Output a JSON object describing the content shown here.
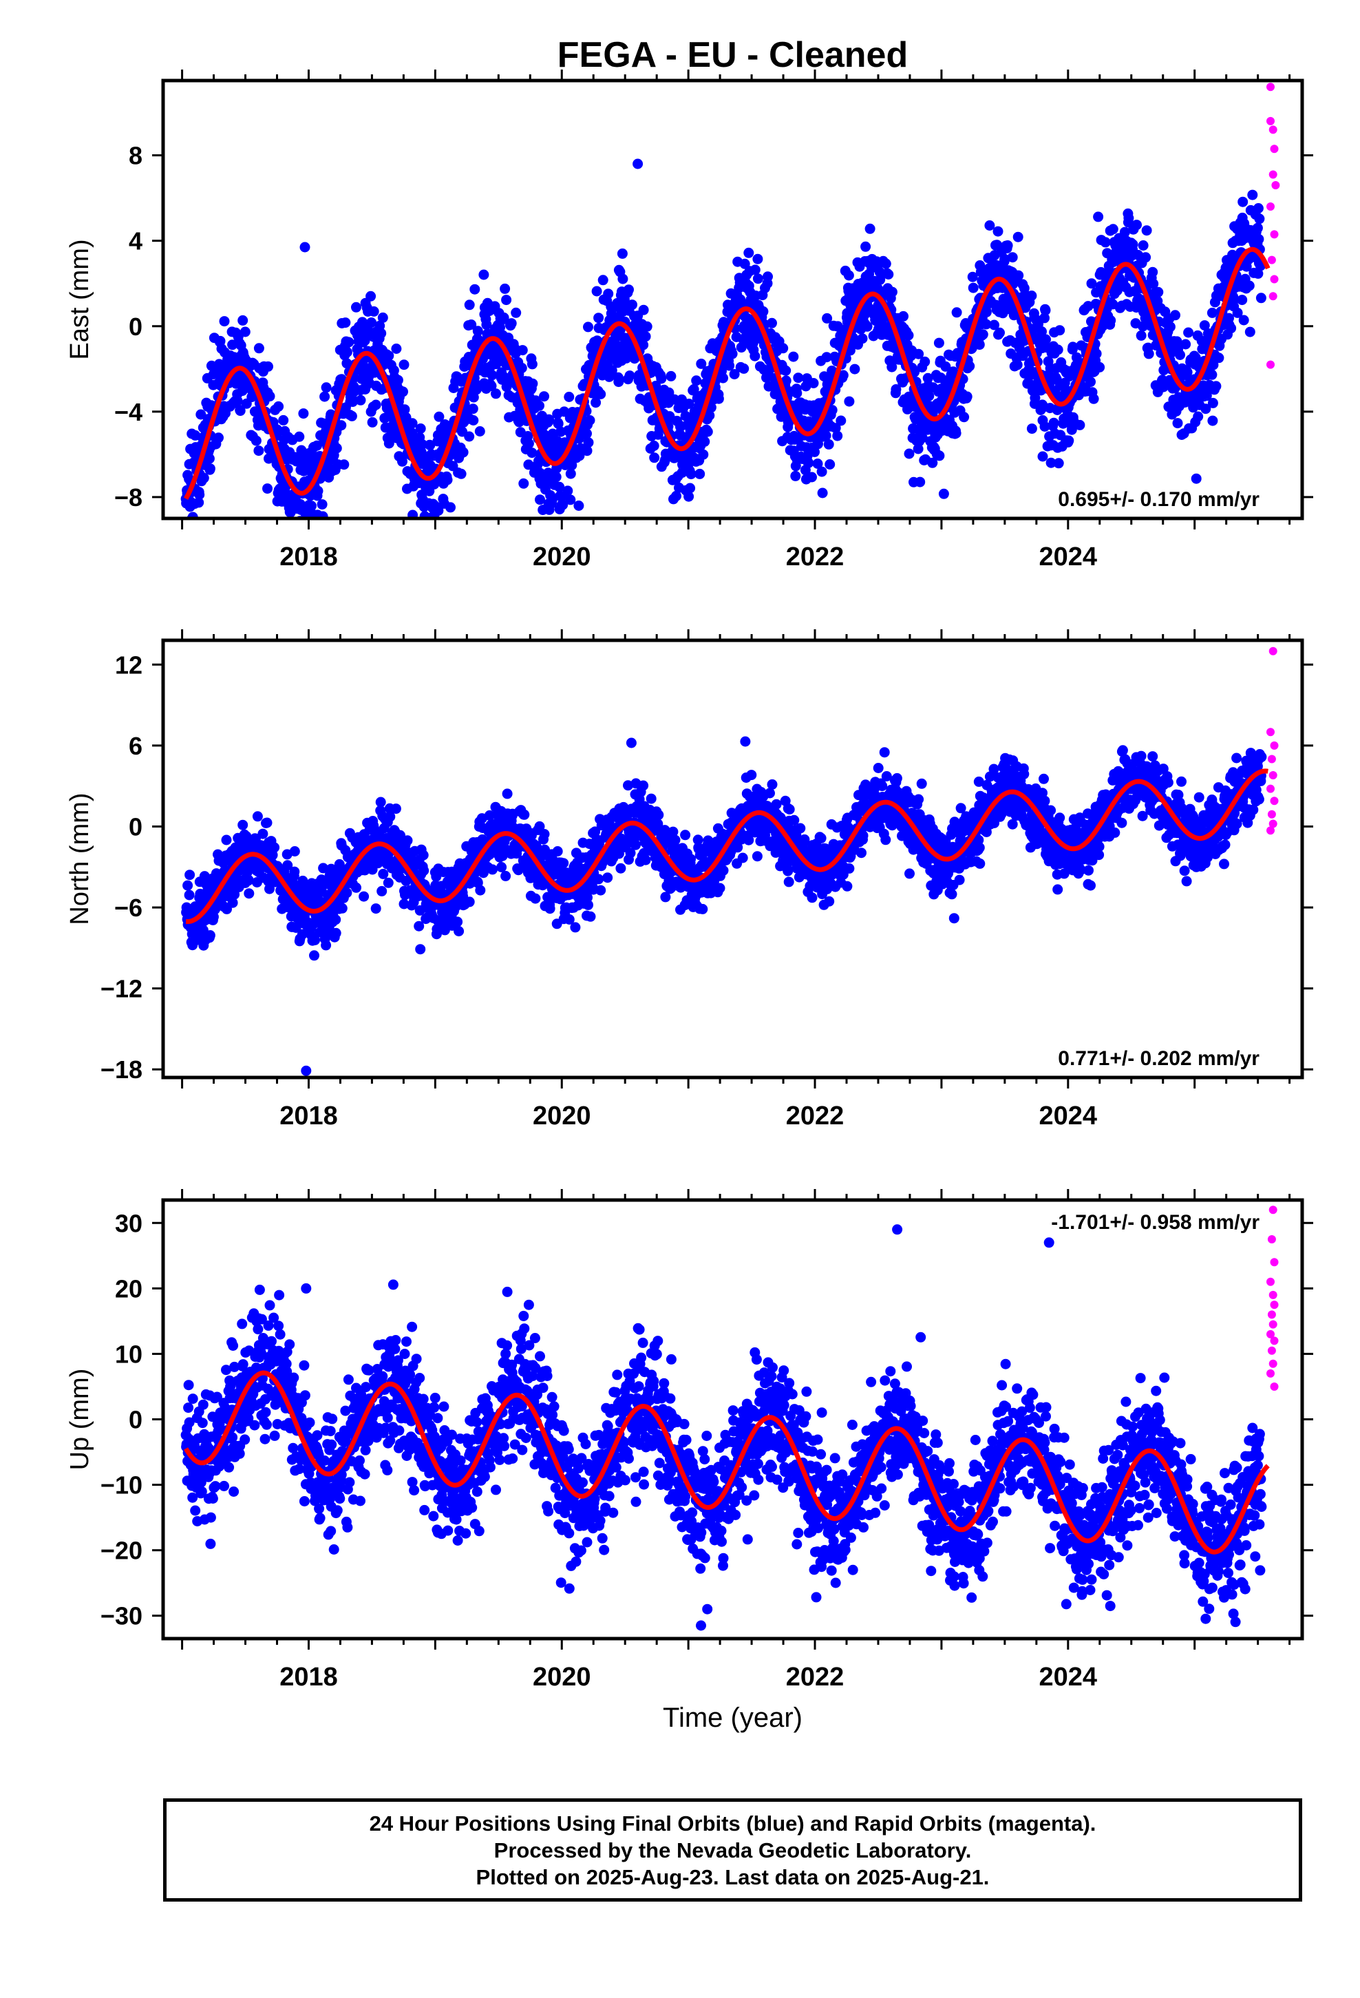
{
  "chart_data": [
    {
      "type": "scatter",
      "title": "FEGA  - EU - Cleaned",
      "ylabel": "East (mm)",
      "xlabel": "",
      "xlim": [
        2016.85,
        2025.85
      ],
      "ylim": [
        -9,
        11.5
      ],
      "yticks": [
        -8,
        -4,
        0,
        4,
        8
      ],
      "xticks": [
        2018,
        2020,
        2022,
        2024
      ],
      "rate_label": "0.695+/- 0.170 mm/yr",
      "rate_position": "bottom-right",
      "model": {
        "offset": -2.6,
        "rate": 0.695,
        "amp": 3.1,
        "phase": 2016.2,
        "anchor": 2021.0
      },
      "scatter": {
        "noise": 1.25,
        "extra": [
          [
            2017.97,
            3.7
          ],
          [
            2020.6,
            7.6
          ],
          [
            2019.85,
            -8.6
          ],
          [
            2023.8,
            -6.1
          ],
          [
            2022.78,
            -7.3
          ],
          [
            2021.95,
            -6.4
          ],
          [
            2017.05,
            -7.9
          ]
        ]
      },
      "series": [
        {
          "name": "Final Orbits (blue)",
          "color": "#0000ff",
          "x_range": [
            2017.03,
            2025.53
          ]
        },
        {
          "name": "Rapid Orbits (magenta)",
          "color": "#ff00ff",
          "values": [
            [
              2025.6,
              11.2
            ],
            [
              2025.6,
              9.6
            ],
            [
              2025.62,
              9.2
            ],
            [
              2025.63,
              8.3
            ],
            [
              2025.62,
              7.1
            ],
            [
              2025.64,
              6.6
            ],
            [
              2025.6,
              5.6
            ],
            [
              2025.63,
              4.3
            ],
            [
              2025.61,
              3.1
            ],
            [
              2025.63,
              2.2
            ],
            [
              2025.62,
              1.4
            ],
            [
              2025.6,
              -1.8
            ]
          ]
        },
        {
          "name": "Model fit",
          "color": "#ff0000"
        }
      ]
    },
    {
      "type": "scatter",
      "title": "",
      "ylabel": "North (mm)",
      "xlabel": "",
      "xlim": [
        2016.85,
        2025.85
      ],
      "ylim": [
        -18.6,
        13.8
      ],
      "yticks": [
        -18,
        -12,
        -6,
        0,
        6,
        12
      ],
      "xticks": [
        2018,
        2020,
        2022,
        2024
      ],
      "rate_label": "0.771+/- 0.202 mm/yr",
      "rate_position": "bottom-right",
      "model": {
        "offset": -1.7,
        "rate": 0.771,
        "amp": 2.3,
        "phase": 2016.3,
        "anchor": 2021.0
      },
      "scatter": {
        "noise": 1.2,
        "extra": [
          [
            2017.98,
            -18.1
          ],
          [
            2021.45,
            6.3
          ],
          [
            2020.55,
            6.2
          ],
          [
            2022.55,
            5.5
          ],
          [
            2023.1,
            -6.8
          ],
          [
            2017.9,
            -7.5
          ]
        ]
      },
      "series": [
        {
          "name": "Final Orbits (blue)",
          "color": "#0000ff",
          "x_range": [
            2017.03,
            2025.53
          ]
        },
        {
          "name": "Rapid Orbits (magenta)",
          "color": "#ff00ff",
          "values": [
            [
              2025.62,
              13.0
            ],
            [
              2025.6,
              7.0
            ],
            [
              2025.63,
              6.0
            ],
            [
              2025.61,
              5.0
            ],
            [
              2025.62,
              3.8
            ],
            [
              2025.6,
              2.8
            ],
            [
              2025.63,
              1.9
            ],
            [
              2025.61,
              0.9
            ],
            [
              2025.62,
              0.2
            ],
            [
              2025.6,
              -0.3
            ]
          ]
        },
        {
          "name": "Model fit",
          "color": "#ff0000"
        }
      ]
    },
    {
      "type": "scatter",
      "title": "",
      "ylabel": "Up (mm)",
      "xlabel": "Time (year)",
      "xlim": [
        2016.85,
        2025.85
      ],
      "ylim": [
        -33.5,
        33.5
      ],
      "yticks": [
        -30,
        -20,
        -10,
        0,
        10,
        20,
        30
      ],
      "xticks": [
        2018,
        2020,
        2022,
        2024
      ],
      "rate_label": "-1.701+/- 0.958 mm/yr",
      "rate_position": "top-right",
      "model": {
        "offset": 0.9,
        "rate": -1.701,
        "amp": 7.3,
        "phase": 2017.4,
        "anchor": 2017.0
      },
      "scatter": {
        "noise": 4.8,
        "extra": [
          [
            2022.65,
            29.0
          ],
          [
            2023.85,
            27.0
          ],
          [
            2021.1,
            -31.5
          ],
          [
            2021.15,
            -29.0
          ],
          [
            2017.98,
            20.0
          ],
          [
            2023.1,
            -24.0
          ],
          [
            2022.3,
            -23.0
          ],
          [
            2019.1,
            -17.0
          ]
        ]
      },
      "series": [
        {
          "name": "Final Orbits (blue)",
          "color": "#0000ff",
          "x_range": [
            2017.03,
            2025.53
          ]
        },
        {
          "name": "Rapid Orbits (magenta)",
          "color": "#ff00ff",
          "values": [
            [
              2025.62,
              32.0
            ],
            [
              2025.61,
              27.5
            ],
            [
              2025.63,
              24.0
            ],
            [
              2025.6,
              21.0
            ],
            [
              2025.62,
              19.0
            ],
            [
              2025.63,
              17.5
            ],
            [
              2025.61,
              16.0
            ],
            [
              2025.62,
              14.5
            ],
            [
              2025.6,
              13.0
            ],
            [
              2025.63,
              12.0
            ],
            [
              2025.61,
              10.5
            ],
            [
              2025.62,
              8.5
            ],
            [
              2025.6,
              7.0
            ],
            [
              2025.63,
              5.0
            ]
          ]
        },
        {
          "name": "Model fit",
          "color": "#ff0000"
        }
      ]
    }
  ],
  "footer": {
    "line1": "24 Hour Positions Using Final Orbits (blue) and Rapid Orbits (magenta).",
    "line2": "Processed by the Nevada Geodetic Laboratory.",
    "line3": "Plotted on 2025-Aug-23. Last data on 2025-Aug-21."
  }
}
